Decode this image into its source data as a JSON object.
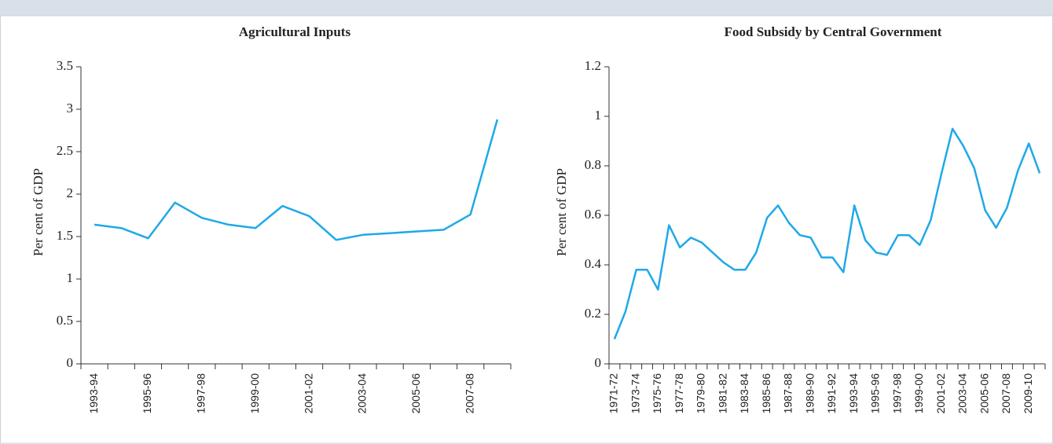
{
  "chart_data": [
    {
      "type": "line",
      "title": "Agricultural  Inputs",
      "y_label": "Per cent of GDP",
      "color": "#1fa9e8",
      "categories": [
        "1993-94",
        null,
        "1995-96",
        null,
        "1997-98",
        null,
        "1999-00",
        null,
        "2001-02",
        null,
        "2003-04",
        null,
        "2005-06",
        null,
        "2007-08",
        null
      ],
      "values": [
        1.64,
        1.6,
        1.48,
        1.9,
        1.72,
        1.64,
        1.6,
        1.86,
        1.74,
        1.46,
        1.52,
        1.54,
        1.56,
        1.58,
        1.76,
        2.88
      ],
      "ylim": [
        0,
        3.5
      ],
      "yticks": [
        0,
        0.5,
        1,
        1.5,
        2,
        2.5,
        3,
        3.5
      ]
    },
    {
      "type": "line",
      "title": "Food Subsidy by Central Government",
      "y_label": "Per cent of GDP",
      "color": "#1fa9e8",
      "categories": [
        "1971-72",
        null,
        "1973-74",
        null,
        "1975-76",
        null,
        "1977-78",
        null,
        "1979-80",
        null,
        "1981-82",
        null,
        "1983-84",
        null,
        "1985-86",
        null,
        "1987-88",
        null,
        "1989-90",
        null,
        "1991-92",
        null,
        "1993-94",
        null,
        "1995-96",
        null,
        "1997-98",
        null,
        "1999-00",
        null,
        "2001-02",
        null,
        "2003-04",
        null,
        "2005-06",
        null,
        "2007-08",
        null,
        "2009-10",
        null
      ],
      "values": [
        0.1,
        0.21,
        0.38,
        0.38,
        0.3,
        0.56,
        0.47,
        0.51,
        0.49,
        0.45,
        0.41,
        0.38,
        0.38,
        0.45,
        0.59,
        0.64,
        0.57,
        0.52,
        0.51,
        0.43,
        0.43,
        0.37,
        0.64,
        0.5,
        0.45,
        0.44,
        0.52,
        0.52,
        0.48,
        0.58,
        0.77,
        0.95,
        0.88,
        0.79,
        0.62,
        0.55,
        0.63,
        0.78,
        0.89,
        0.77
      ],
      "ylim": [
        0,
        1.2
      ],
      "yticks": [
        0,
        0.2,
        0.4,
        0.6,
        0.8,
        1,
        1.2
      ]
    }
  ]
}
